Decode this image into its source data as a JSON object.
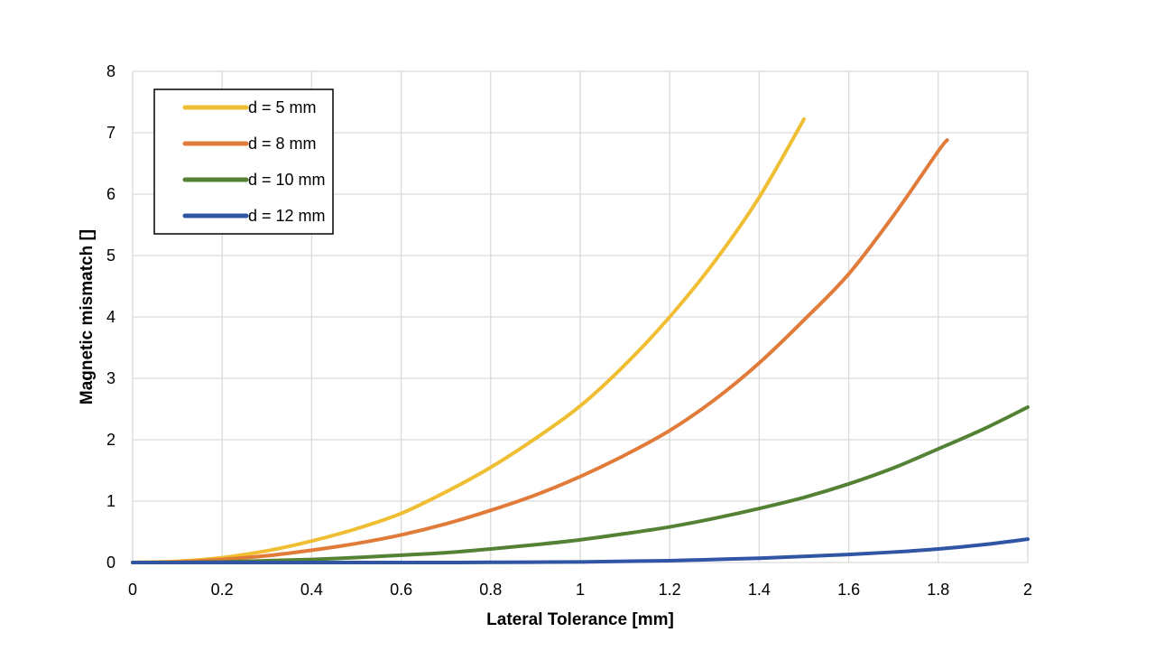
{
  "chart_data": {
    "type": "line",
    "title": "",
    "xlabel": "Lateral Tolerance [mm]",
    "ylabel": "Magnetic mismatch []",
    "xlim": [
      0,
      2
    ],
    "ylim": [
      0,
      8
    ],
    "xticks": [
      0,
      0.2,
      0.4,
      0.6,
      0.8,
      1,
      1.2,
      1.4,
      1.6,
      1.8,
      2
    ],
    "yticks": [
      0,
      1,
      2,
      3,
      4,
      5,
      6,
      7,
      8
    ],
    "grid": true,
    "legend_position": "top-left",
    "series": [
      {
        "name": "d = 5 mm",
        "color": "#F0BE32",
        "x": [
          0,
          0.1,
          0.2,
          0.3,
          0.4,
          0.5,
          0.6,
          0.7,
          0.8,
          0.9,
          1.0,
          1.1,
          1.2,
          1.3,
          1.4,
          1.5
        ],
        "y": [
          0,
          0.02,
          0.08,
          0.19,
          0.35,
          0.55,
          0.8,
          1.15,
          1.55,
          2.02,
          2.55,
          3.22,
          4.0,
          4.9,
          5.95,
          7.22
        ]
      },
      {
        "name": "d = 8 mm",
        "color": "#E07B39",
        "x": [
          0,
          0.1,
          0.2,
          0.3,
          0.4,
          0.5,
          0.6,
          0.7,
          0.8,
          0.9,
          1.0,
          1.1,
          1.2,
          1.3,
          1.4,
          1.5,
          1.6,
          1.7,
          1.8,
          1.82
        ],
        "y": [
          0,
          0.01,
          0.05,
          0.11,
          0.2,
          0.31,
          0.45,
          0.63,
          0.85,
          1.1,
          1.4,
          1.75,
          2.15,
          2.65,
          3.25,
          3.95,
          4.7,
          5.65,
          6.7,
          6.88
        ]
      },
      {
        "name": "d = 10 mm",
        "color": "#548235",
        "x": [
          0,
          0.1,
          0.2,
          0.3,
          0.4,
          0.5,
          0.6,
          0.7,
          0.8,
          0.9,
          1.0,
          1.1,
          1.2,
          1.3,
          1.4,
          1.5,
          1.6,
          1.7,
          1.8,
          1.9,
          2.0
        ],
        "y": [
          0,
          0,
          0.01,
          0.03,
          0.05,
          0.08,
          0.12,
          0.16,
          0.22,
          0.29,
          0.37,
          0.47,
          0.58,
          0.72,
          0.88,
          1.06,
          1.28,
          1.54,
          1.85,
          2.17,
          2.53
        ]
      },
      {
        "name": "d = 12 mm",
        "color": "#2F55A4",
        "x": [
          0,
          0.1,
          0.2,
          0.3,
          0.4,
          0.5,
          0.6,
          0.7,
          0.8,
          0.9,
          1.0,
          1.1,
          1.2,
          1.3,
          1.4,
          1.5,
          1.6,
          1.7,
          1.8,
          1.9,
          2.0
        ],
        "y": [
          0,
          0,
          0,
          0,
          0,
          0,
          0,
          0,
          0.003,
          0.006,
          0.01,
          0.02,
          0.03,
          0.05,
          0.07,
          0.1,
          0.13,
          0.17,
          0.22,
          0.29,
          0.38
        ]
      }
    ]
  }
}
